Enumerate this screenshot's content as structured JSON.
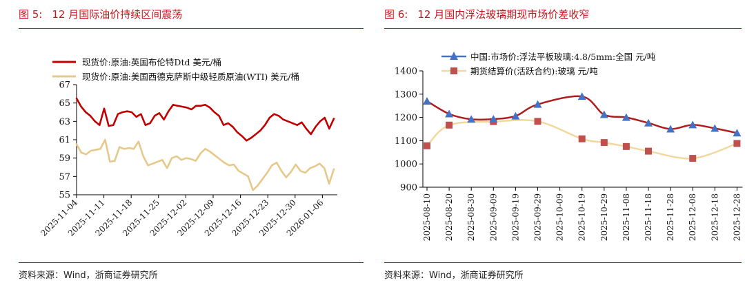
{
  "left": {
    "fig_label": "图 5:",
    "fig_title": "12 月国际油价持续区间震荡",
    "source": "资料来源：Wind，浙商证券研究所"
  },
  "right": {
    "fig_label": "图 6:",
    "fig_title": "12 月国内浮法玻璃期现市场价差收窄",
    "source": "资料来源：Wind，浙商证券研究所"
  },
  "colors": {
    "title_red": "#c8161d",
    "brent": "#c00000",
    "wti": "#e6c98a",
    "glass_spot": "#4472c4",
    "glass_futures": "#c0504d",
    "glass_futures_line": "#f0d8a0"
  },
  "chart_data": [
    {
      "type": "line",
      "ylim": [
        55,
        67
      ],
      "yticks": [
        "55",
        "57",
        "59",
        "61",
        "63",
        "65",
        "67"
      ],
      "x_tick_labels": [
        "2025-11-04",
        "2025-11-11",
        "2025-11-18",
        "2025-11-25",
        "2025-12-02",
        "2025-12-09",
        "2025-12-16",
        "2025-12-23",
        "2025-12-30",
        "2026-01-06"
      ],
      "legend_placement": "top",
      "series": [
        {
          "name": "现货价:原油:英国布伦特Dtd 美元/桶",
          "values": [
            65.5,
            64.6,
            64.0,
            63.6,
            63.0,
            62.6,
            64.4,
            62.5,
            62.6,
            63.8,
            64.0,
            64.1,
            64.0,
            63.5,
            63.8,
            62.6,
            62.8,
            63.6,
            63.9,
            63.2,
            64.1,
            64.8,
            64.7,
            64.6,
            64.5,
            64.3,
            64.7,
            64.7,
            64.8,
            64.5,
            64.0,
            63.6,
            62.6,
            62.8,
            62.4,
            61.8,
            61.4,
            60.9,
            61.2,
            61.6,
            62.0,
            62.6,
            63.4,
            63.8,
            63.6,
            63.2,
            63.0,
            62.8,
            62.6,
            62.9,
            62.2,
            61.6,
            62.4,
            63.0,
            63.4,
            62.2,
            63.3
          ]
        },
        {
          "name": "现货价:原油:美国西德克萨斯中级轻质原油(WTI) 美元/桶",
          "values": [
            60.5,
            59.6,
            59.4,
            59.8,
            59.9,
            60.0,
            61.0,
            58.6,
            58.7,
            60.2,
            60.0,
            60.1,
            60.0,
            60.8,
            59.2,
            58.2,
            58.4,
            58.6,
            58.8,
            57.9,
            59.0,
            59.2,
            58.8,
            59.0,
            58.9,
            58.7,
            59.5,
            60.0,
            59.7,
            59.3,
            58.9,
            58.5,
            58.2,
            58.3,
            57.6,
            57.3,
            57.0,
            55.5,
            56.0,
            56.7,
            57.4,
            58.2,
            58.5,
            57.6,
            56.9,
            57.5,
            58.3,
            57.6,
            57.4,
            57.9,
            58.1,
            58.4,
            57.9,
            56.2,
            57.8
          ]
        }
      ]
    },
    {
      "type": "line",
      "ylim": [
        900,
        1400
      ],
      "yticks": [
        "900",
        "1000",
        "1100",
        "1200",
        "1300",
        "1400"
      ],
      "categories": [
        "2025-08-10",
        "2025-08-20",
        "2025-08-30",
        "2025-09-09",
        "2025-09-19",
        "2025-09-29",
        "2025-10-09",
        "2025-10-19",
        "2025-10-29",
        "2025-11-08",
        "2025-11-18",
        "2025-11-28",
        "2025-12-08",
        "2025-12-18",
        "2025-12-28"
      ],
      "legend_placement": "top",
      "series": [
        {
          "name": "中国:市场价:浮法平板玻璃:4.8/5mm:全国 元/吨",
          "x": [
            "2025-08-10",
            "2025-08-20",
            "2025-08-30",
            "2025-09-09",
            "2025-09-19",
            "2025-09-29",
            "2025-10-19",
            "2025-10-29",
            "2025-11-08",
            "2025-11-18",
            "2025-11-28",
            "2025-12-08",
            "2025-12-18",
            "2025-12-28"
          ],
          "values": [
            1270,
            1215,
            1192,
            1193,
            1206,
            1256,
            1290,
            1212,
            1200,
            1176,
            1150,
            1168,
            1153,
            1133
          ]
        },
        {
          "name": "期货结算价(活跃合约):玻璃 元/吨",
          "x": [
            "2025-08-10",
            "2025-08-20",
            "2025-09-09",
            "2025-09-29",
            "2025-10-19",
            "2025-10-29",
            "2025-11-08",
            "2025-11-18",
            "2025-12-08",
            "2025-12-28"
          ],
          "values": [
            1078,
            1167,
            1182,
            1183,
            1108,
            1092,
            1075,
            1055,
            1024,
            1088
          ]
        }
      ]
    }
  ]
}
